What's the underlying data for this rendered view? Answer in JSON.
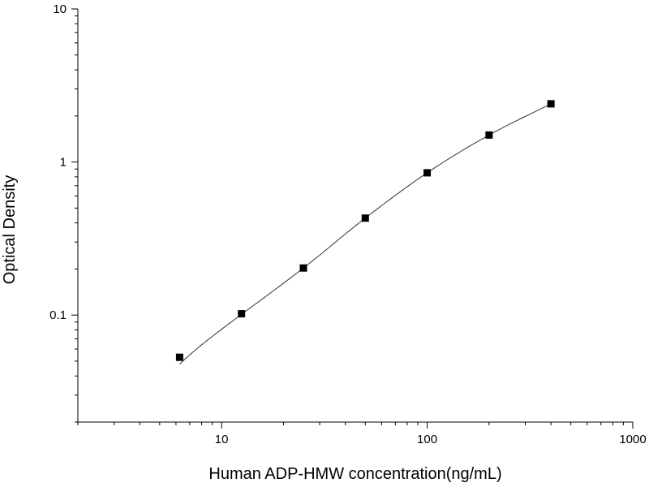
{
  "chart_data": {
    "type": "scatter",
    "title": "",
    "xlabel": "Human ADP-HMW concentration(ng/mL)",
    "ylabel": "Optical Density",
    "x_scale": "log",
    "y_scale": "log",
    "xlim": [
      2,
      1000
    ],
    "ylim": [
      0.02,
      10
    ],
    "grid": false,
    "legend": "none",
    "x_ticks": [
      {
        "value": 10,
        "label": "10"
      },
      {
        "value": 100,
        "label": "100"
      },
      {
        "value": 1000,
        "label": "1000"
      }
    ],
    "y_ticks": [
      {
        "value": 0.1,
        "label": "0.1"
      },
      {
        "value": 1,
        "label": "1"
      },
      {
        "value": 10,
        "label": "10"
      }
    ],
    "series": [
      {
        "points": [
          {
            "x": 6.25,
            "y": 0.053
          },
          {
            "x": 12.5,
            "y": 0.102
          },
          {
            "x": 25,
            "y": 0.203
          },
          {
            "x": 50,
            "y": 0.43
          },
          {
            "x": 100,
            "y": 0.85
          },
          {
            "x": 200,
            "y": 1.5
          },
          {
            "x": 400,
            "y": 2.4
          }
        ],
        "marker": "square",
        "color": "#000000"
      }
    ],
    "fit_curve": {
      "x_range": [
        6.25,
        400
      ],
      "color": "#333333"
    }
  }
}
